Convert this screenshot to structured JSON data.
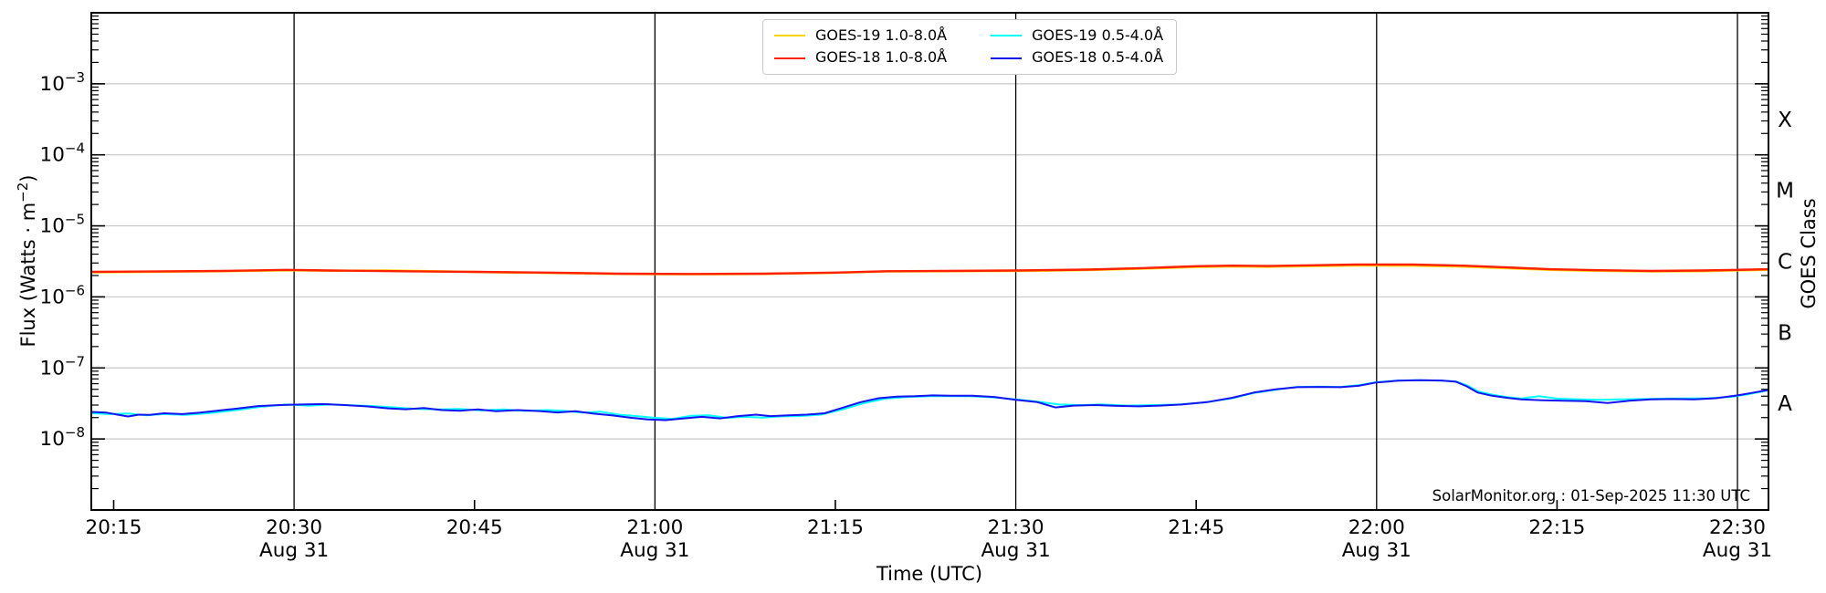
{
  "attribution": "SolarMonitor.org : 01-Sep-2025 11:30 UTC",
  "axes": {
    "x_title": "Time (UTC)",
    "y_left_title_prefix": "Flux (Watts · m",
    "y_left_title_sup": "−2",
    "y_left_title_suffix": ")",
    "y_right_title": "GOES Class"
  },
  "legend": {
    "items": [
      {
        "label": "GOES-19 1.0-8.0Å",
        "color": "#ffd500"
      },
      {
        "label": "GOES-18 1.0-8.0Å",
        "color": "#ff2000"
      },
      {
        "label": "GOES-19 0.5-4.0Å",
        "color": "#00ffff"
      },
      {
        "label": "GOES-18 0.5-4.0Å",
        "color": "#1414f0"
      }
    ]
  },
  "chart_data": {
    "type": "line",
    "title": "",
    "xlabel": "Time (UTC)",
    "ylabel": "Flux (Watts · m⁻²)",
    "right_axis_label": "GOES Class",
    "x_date": "Aug 31",
    "x_domain_hours_utc": [
      20.219,
      22.543
    ],
    "y_scale": "log",
    "y_domain": [
      1e-09,
      0.01
    ],
    "grid": {
      "horizontal_decades": [
        -8,
        -7,
        -6,
        -5,
        -4,
        -3
      ],
      "vertical_at_half_hours": true
    },
    "x_ticks": [
      {
        "t": 20.25,
        "label": "20:15"
      },
      {
        "t": 20.5,
        "label": "20:30",
        "date": "Aug 31",
        "gridline": true
      },
      {
        "t": 20.75,
        "label": "20:45"
      },
      {
        "t": 21.0,
        "label": "21:00",
        "date": "Aug 31",
        "gridline": true
      },
      {
        "t": 21.25,
        "label": "21:15"
      },
      {
        "t": 21.5,
        "label": "21:30",
        "date": "Aug 31",
        "gridline": true
      },
      {
        "t": 21.75,
        "label": "21:45"
      },
      {
        "t": 22.0,
        "label": "22:00",
        "date": "Aug 31",
        "gridline": true
      },
      {
        "t": 22.25,
        "label": "22:15"
      },
      {
        "t": 22.5,
        "label": "22:30",
        "date": "Aug 31",
        "gridline": true
      }
    ],
    "y_ticks_labeled_exponents": [
      {
        "base": "10",
        "sup": "−3",
        "exp": -3
      },
      {
        "base": "10",
        "sup": "−4",
        "exp": -4
      },
      {
        "base": "10",
        "sup": "−5",
        "exp": -5
      },
      {
        "base": "10",
        "sup": "−6",
        "exp": -6
      },
      {
        "base": "10",
        "sup": "−7",
        "exp": -7
      },
      {
        "base": "10",
        "sup": "−8",
        "exp": -8
      }
    ],
    "goes_classes": [
      {
        "label": "X",
        "flux_mid": 0.0003162
      },
      {
        "label": "M",
        "flux_mid": 3.162e-05
      },
      {
        "label": "C",
        "flux_mid": 3.162e-06
      },
      {
        "label": "B",
        "flux_mid": 3.162e-07
      },
      {
        "label": "A",
        "flux_mid": 3.162e-08
      }
    ],
    "series": [
      {
        "name": "GOES-19 1.0-8.0Å",
        "id": "goes19-long",
        "color": "#ffd500",
        "width": 2.4,
        "points": [
          [
            20.219,
            2.22e-06
          ],
          [
            20.3,
            2.25e-06
          ],
          [
            20.4,
            2.3e-06
          ],
          [
            20.49,
            2.37e-06
          ],
          [
            20.55,
            2.33e-06
          ],
          [
            20.63,
            2.36e-06
          ],
          [
            20.7,
            2.3e-06
          ],
          [
            20.78,
            2.22e-06
          ],
          [
            20.85,
            2.17e-06
          ],
          [
            20.95,
            2.1e-06
          ],
          [
            21.05,
            2.08e-06
          ],
          [
            21.15,
            2.1e-06
          ],
          [
            21.25,
            2.18e-06
          ],
          [
            21.32,
            2.28e-06
          ],
          [
            21.4,
            2.3e-06
          ],
          [
            21.5,
            2.32e-06
          ],
          [
            21.6,
            2.38e-06
          ],
          [
            21.68,
            2.5e-06
          ],
          [
            21.75,
            2.63e-06
          ],
          [
            21.8,
            2.68e-06
          ],
          [
            21.85,
            2.65e-06
          ],
          [
            21.9,
            2.7e-06
          ],
          [
            21.97,
            2.76e-06
          ],
          [
            22.05,
            2.75e-06
          ],
          [
            22.12,
            2.67e-06
          ],
          [
            22.18,
            2.53e-06
          ],
          [
            22.24,
            2.4e-06
          ],
          [
            22.3,
            2.33e-06
          ],
          [
            22.38,
            2.28e-06
          ],
          [
            22.45,
            2.3e-06
          ],
          [
            22.5,
            2.36e-06
          ],
          [
            22.543,
            2.4e-06
          ]
        ]
      },
      {
        "name": "GOES-18 1.0-8.0Å",
        "id": "goes18-long",
        "color": "#ff2000",
        "width": 2.4,
        "points": [
          [
            20.219,
            2.25e-06
          ],
          [
            20.3,
            2.28e-06
          ],
          [
            20.4,
            2.32e-06
          ],
          [
            20.49,
            2.4e-06
          ],
          [
            20.55,
            2.35e-06
          ],
          [
            20.65,
            2.3e-06
          ],
          [
            20.75,
            2.25e-06
          ],
          [
            20.85,
            2.2e-06
          ],
          [
            20.95,
            2.12e-06
          ],
          [
            21.05,
            2.1e-06
          ],
          [
            21.15,
            2.12e-06
          ],
          [
            21.25,
            2.2e-06
          ],
          [
            21.32,
            2.3e-06
          ],
          [
            21.4,
            2.32e-06
          ],
          [
            21.5,
            2.35e-06
          ],
          [
            21.6,
            2.42e-06
          ],
          [
            21.68,
            2.55e-06
          ],
          [
            21.75,
            2.7e-06
          ],
          [
            21.8,
            2.75e-06
          ],
          [
            21.85,
            2.72e-06
          ],
          [
            21.9,
            2.78e-06
          ],
          [
            21.97,
            2.85e-06
          ],
          [
            22.05,
            2.85e-06
          ],
          [
            22.12,
            2.75e-06
          ],
          [
            22.18,
            2.6e-06
          ],
          [
            22.24,
            2.45e-06
          ],
          [
            22.3,
            2.38e-06
          ],
          [
            22.38,
            2.32e-06
          ],
          [
            22.45,
            2.35e-06
          ],
          [
            22.5,
            2.4e-06
          ],
          [
            22.543,
            2.45e-06
          ]
        ]
      },
      {
        "name": "GOES-19 0.5-4.0Å",
        "id": "goes19-short",
        "color": "#00ffff",
        "width": 2.0,
        "points": [
          [
            20.219,
            2.3e-08
          ],
          [
            20.245,
            2.24e-08
          ],
          [
            20.27,
            2.28e-08
          ],
          [
            20.295,
            2.15e-08
          ],
          [
            20.32,
            2.24e-08
          ],
          [
            20.35,
            2.18e-08
          ],
          [
            20.38,
            2.3e-08
          ],
          [
            20.42,
            2.55e-08
          ],
          [
            20.455,
            2.85e-08
          ],
          [
            20.49,
            3.05e-08
          ],
          [
            20.52,
            2.95e-08
          ],
          [
            20.55,
            3.05e-08
          ],
          [
            20.58,
            2.98e-08
          ],
          [
            20.61,
            2.9e-08
          ],
          [
            20.64,
            2.78e-08
          ],
          [
            20.67,
            2.65e-08
          ],
          [
            20.7,
            2.6e-08
          ],
          [
            20.73,
            2.65e-08
          ],
          [
            20.76,
            2.52e-08
          ],
          [
            20.79,
            2.6e-08
          ],
          [
            20.82,
            2.48e-08
          ],
          [
            20.85,
            2.55e-08
          ],
          [
            20.875,
            2.48e-08
          ],
          [
            20.9,
            2.35e-08
          ],
          [
            20.925,
            2.42e-08
          ],
          [
            20.95,
            2.2e-08
          ],
          [
            20.975,
            2.1e-08
          ],
          [
            21.0,
            1.98e-08
          ],
          [
            21.025,
            1.92e-08
          ],
          [
            21.05,
            2.12e-08
          ],
          [
            21.075,
            2.15e-08
          ],
          [
            21.1,
            1.98e-08
          ],
          [
            21.125,
            2.05e-08
          ],
          [
            21.15,
            2e-08
          ],
          [
            21.175,
            2.08e-08
          ],
          [
            21.2,
            2.1e-08
          ],
          [
            21.23,
            2.2e-08
          ],
          [
            21.26,
            2.6e-08
          ],
          [
            21.29,
            3.2e-08
          ],
          [
            21.32,
            3.7e-08
          ],
          [
            21.35,
            3.9e-08
          ],
          [
            21.38,
            4e-08
          ],
          [
            21.41,
            4e-08
          ],
          [
            21.44,
            3.98e-08
          ],
          [
            21.47,
            3.85e-08
          ],
          [
            21.5,
            3.6e-08
          ],
          [
            21.53,
            3.35e-08
          ],
          [
            21.56,
            3.05e-08
          ],
          [
            21.59,
            3e-08
          ],
          [
            21.62,
            3.05e-08
          ],
          [
            21.655,
            2.95e-08
          ],
          [
            21.69,
            3e-08
          ],
          [
            21.725,
            3.05e-08
          ],
          [
            21.76,
            3.25e-08
          ],
          [
            21.8,
            3.75e-08
          ],
          [
            21.83,
            4.45e-08
          ],
          [
            21.86,
            4.95e-08
          ],
          [
            21.89,
            5.4e-08
          ],
          [
            21.92,
            5.45e-08
          ],
          [
            21.95,
            5.4e-08
          ],
          [
            21.975,
            5.7e-08
          ],
          [
            22.0,
            6.3e-08
          ],
          [
            22.03,
            6.65e-08
          ],
          [
            22.06,
            6.7e-08
          ],
          [
            22.09,
            6.6e-08
          ],
          [
            22.11,
            6.45e-08
          ],
          [
            22.125,
            5.7e-08
          ],
          [
            22.14,
            4.7e-08
          ],
          [
            22.16,
            4.2e-08
          ],
          [
            22.18,
            3.9e-08
          ],
          [
            22.2,
            3.7e-08
          ],
          [
            22.225,
            4e-08
          ],
          [
            22.25,
            3.7e-08
          ],
          [
            22.28,
            3.6e-08
          ],
          [
            22.31,
            3.55e-08
          ],
          [
            22.34,
            3.6e-08
          ],
          [
            22.37,
            3.65e-08
          ],
          [
            22.4,
            3.7e-08
          ],
          [
            22.43,
            3.72e-08
          ],
          [
            22.46,
            3.75e-08
          ],
          [
            22.49,
            3.9e-08
          ],
          [
            22.515,
            4.25e-08
          ],
          [
            22.543,
            4.85e-08
          ]
        ]
      },
      {
        "name": "GOES-18 0.5-4.0Å",
        "id": "goes18-short",
        "color": "#1414f0",
        "width": 2.0,
        "points": [
          [
            20.219,
            2.4e-08
          ],
          [
            20.24,
            2.35e-08
          ],
          [
            20.255,
            2.2e-08
          ],
          [
            20.27,
            2.07e-08
          ],
          [
            20.285,
            2.2e-08
          ],
          [
            20.3,
            2.18e-08
          ],
          [
            20.32,
            2.3e-08
          ],
          [
            20.345,
            2.24e-08
          ],
          [
            20.37,
            2.35e-08
          ],
          [
            20.41,
            2.6e-08
          ],
          [
            20.45,
            2.9e-08
          ],
          [
            20.48,
            3e-08
          ],
          [
            20.51,
            3.05e-08
          ],
          [
            20.54,
            3.1e-08
          ],
          [
            20.57,
            3e-08
          ],
          [
            20.6,
            2.88e-08
          ],
          [
            20.63,
            2.7e-08
          ],
          [
            20.655,
            2.62e-08
          ],
          [
            20.68,
            2.72e-08
          ],
          [
            20.705,
            2.55e-08
          ],
          [
            20.73,
            2.5e-08
          ],
          [
            20.755,
            2.6e-08
          ],
          [
            20.78,
            2.45e-08
          ],
          [
            20.81,
            2.55e-08
          ],
          [
            20.84,
            2.47e-08
          ],
          [
            20.865,
            2.36e-08
          ],
          [
            20.89,
            2.46e-08
          ],
          [
            20.915,
            2.27e-08
          ],
          [
            20.94,
            2.15e-08
          ],
          [
            20.965,
            2e-08
          ],
          [
            20.99,
            1.88e-08
          ],
          [
            21.015,
            1.84e-08
          ],
          [
            21.04,
            1.95e-08
          ],
          [
            21.065,
            2.05e-08
          ],
          [
            21.09,
            1.95e-08
          ],
          [
            21.115,
            2.1e-08
          ],
          [
            21.14,
            2.2e-08
          ],
          [
            21.16,
            2.1e-08
          ],
          [
            21.185,
            2.15e-08
          ],
          [
            21.21,
            2.2e-08
          ],
          [
            21.235,
            2.3e-08
          ],
          [
            21.26,
            2.75e-08
          ],
          [
            21.285,
            3.3e-08
          ],
          [
            21.31,
            3.75e-08
          ],
          [
            21.335,
            3.95e-08
          ],
          [
            21.36,
            4e-08
          ],
          [
            21.385,
            4.1e-08
          ],
          [
            21.41,
            4.05e-08
          ],
          [
            21.44,
            4.05e-08
          ],
          [
            21.47,
            3.9e-08
          ],
          [
            21.5,
            3.55e-08
          ],
          [
            21.53,
            3.3e-08
          ],
          [
            21.555,
            2.78e-08
          ],
          [
            21.58,
            2.95e-08
          ],
          [
            21.61,
            3e-08
          ],
          [
            21.64,
            2.92e-08
          ],
          [
            21.67,
            2.88e-08
          ],
          [
            21.7,
            2.95e-08
          ],
          [
            21.73,
            3.05e-08
          ],
          [
            21.765,
            3.3e-08
          ],
          [
            21.8,
            3.8e-08
          ],
          [
            21.83,
            4.5e-08
          ],
          [
            21.86,
            5e-08
          ],
          [
            21.89,
            5.35e-08
          ],
          [
            21.92,
            5.4e-08
          ],
          [
            21.95,
            5.35e-08
          ],
          [
            21.975,
            5.6e-08
          ],
          [
            22.0,
            6.25e-08
          ],
          [
            22.03,
            6.6e-08
          ],
          [
            22.06,
            6.7e-08
          ],
          [
            22.09,
            6.65e-08
          ],
          [
            22.11,
            6.4e-08
          ],
          [
            22.125,
            5.5e-08
          ],
          [
            22.14,
            4.5e-08
          ],
          [
            22.16,
            4.05e-08
          ],
          [
            22.18,
            3.8e-08
          ],
          [
            22.2,
            3.6e-08
          ],
          [
            22.23,
            3.5e-08
          ],
          [
            22.26,
            3.45e-08
          ],
          [
            22.29,
            3.4e-08
          ],
          [
            22.32,
            3.2e-08
          ],
          [
            22.35,
            3.45e-08
          ],
          [
            22.38,
            3.6e-08
          ],
          [
            22.41,
            3.65e-08
          ],
          [
            22.44,
            3.6e-08
          ],
          [
            22.47,
            3.75e-08
          ],
          [
            22.5,
            4.1e-08
          ],
          [
            22.52,
            4.45e-08
          ],
          [
            22.543,
            4.9e-08
          ]
        ]
      }
    ]
  },
  "style": {
    "spine_color": "#000000",
    "vgrid_color": "#000000",
    "hgrid_color": "#c9c9c9",
    "tick_color": "#000000"
  }
}
